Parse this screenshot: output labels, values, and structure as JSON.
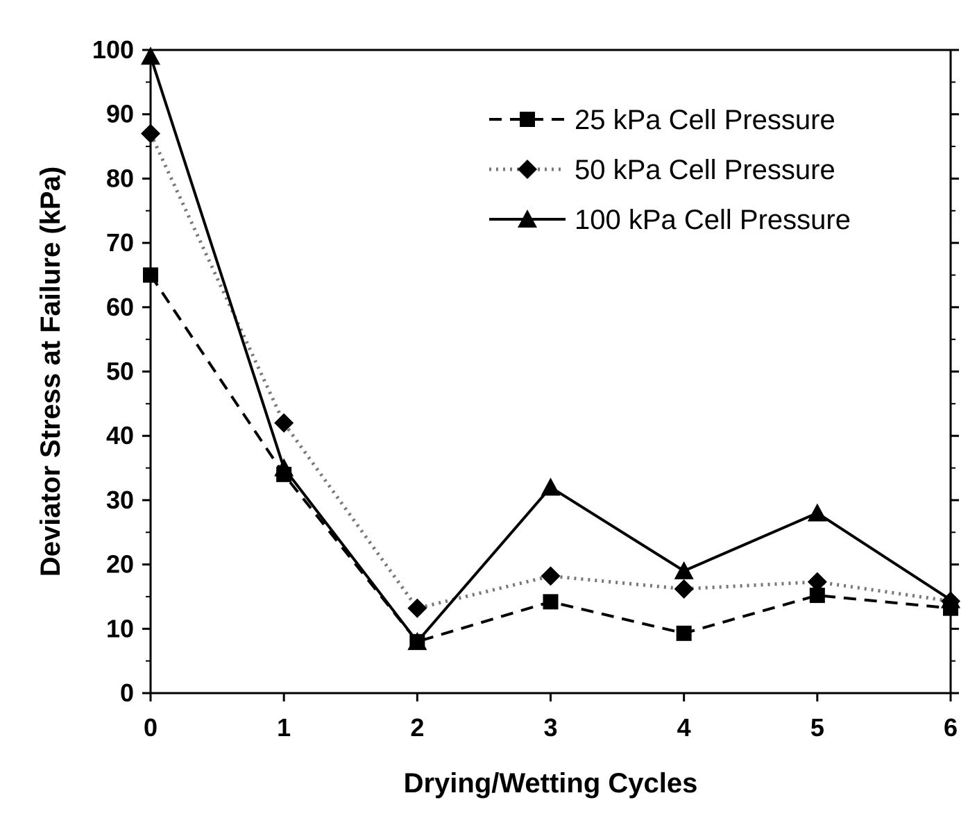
{
  "chart_data": {
    "type": "line",
    "title": "",
    "xlabel": "Drying/Wetting Cycles",
    "ylabel": "Deviator Stress at Failure (kPa)",
    "xlim": [
      0,
      6
    ],
    "ylim": [
      0,
      100
    ],
    "x_ticks": [
      "0",
      "1",
      "2",
      "3",
      "4",
      "5",
      "6"
    ],
    "y_ticks": [
      "0",
      "10",
      "20",
      "30",
      "40",
      "50",
      "60",
      "70",
      "80",
      "90",
      "100"
    ],
    "grid": false,
    "legend_position": "top-right",
    "x": [
      0,
      1,
      2,
      3,
      4,
      5,
      6
    ],
    "series": [
      {
        "name": "25 kPa Cell Pressure",
        "values": [
          65,
          34,
          8,
          14.2,
          9.3,
          15.2,
          13.2
        ],
        "line_style": "dashed",
        "marker": "square",
        "color": "#000000"
      },
      {
        "name": "50 kPa Cell Pressure",
        "values": [
          87,
          42,
          13.2,
          18.2,
          16.2,
          17.3,
          14.3
        ],
        "line_style": "dotted",
        "marker": "diamond",
        "color": "#000000"
      },
      {
        "name": "100 kPa Cell Pressure",
        "values": [
          99,
          35,
          8,
          32,
          19,
          28,
          14.5
        ],
        "line_style": "solid",
        "marker": "triangle",
        "color": "#000000"
      }
    ]
  }
}
